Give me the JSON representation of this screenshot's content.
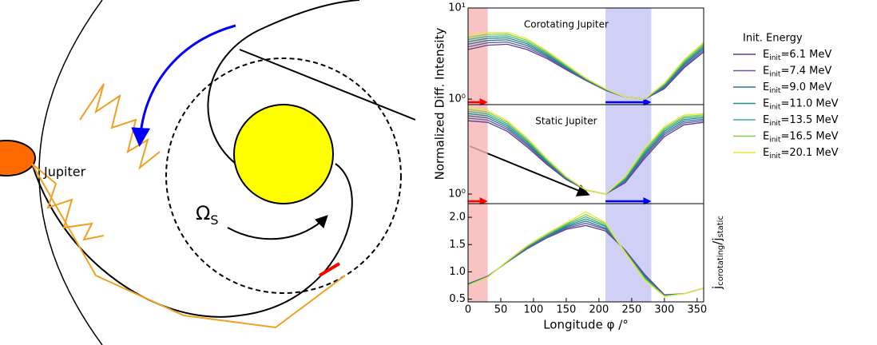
{
  "diagram": {
    "jupiter_label": "Jupiter",
    "omega": "Ω",
    "omega_sub": "S"
  },
  "chart_data": {
    "type": "line",
    "x": [
      0,
      30,
      60,
      90,
      120,
      150,
      180,
      210,
      240,
      270,
      300,
      330,
      360
    ],
    "xlim": [
      0,
      360
    ],
    "xticks": [
      0,
      50,
      100,
      150,
      200,
      250,
      300,
      350
    ],
    "xlabel": "Longitude φ /°",
    "ylabel": "Normalized Diff. Intensity",
    "ratio_label": [
      "j",
      "corotating",
      "/j",
      "static"
    ],
    "legend_title": "Init. Energy",
    "bands": [
      {
        "from": 0,
        "to": 30,
        "color": "#f7b4b4",
        "arrow": "#ff0000"
      },
      {
        "from": 210,
        "to": 280,
        "color": "#c4c4f5",
        "arrow": "#0000ff"
      }
    ],
    "series": [
      {
        "name": [
          "E",
          "init",
          "=6.1 MeV"
        ],
        "color": "#5e3c99"
      },
      {
        "name": [
          "E",
          "init",
          "=7.4 MeV"
        ],
        "color": "#5a5fa0"
      },
      {
        "name": [
          "E",
          "init",
          "=9.0 MeV"
        ],
        "color": "#3b6e94"
      },
      {
        "name": [
          "E",
          "init",
          "=11.0 MeV"
        ],
        "color": "#21908d"
      },
      {
        "name": [
          "E",
          "init",
          "=13.5 MeV"
        ],
        "color": "#3cb48a"
      },
      {
        "name": [
          "E",
          "init",
          "=16.5 MeV"
        ],
        "color": "#8ccb4a"
      },
      {
        "name": [
          "E",
          "init",
          "=20.1 MeV"
        ],
        "color": "#e8e840"
      }
    ],
    "panels": [
      {
        "title": "Corotating Jupiter",
        "log": true,
        "ylim": [
          0.87,
          10
        ],
        "yticks": [
          {
            "value": 1,
            "label": "10⁰"
          },
          {
            "value": 10,
            "label": "10¹"
          }
        ],
        "values": [
          [
            3.5,
            3.9,
            4.0,
            3.5,
            2.8,
            2.1,
            1.6,
            1.25,
            1.05,
            1.0,
            1.3,
            2.2,
            3.3
          ],
          [
            3.75,
            4.15,
            4.23,
            3.68,
            2.9,
            2.15,
            1.62,
            1.26,
            1.05,
            1.0,
            1.33,
            2.28,
            3.45
          ],
          [
            4.0,
            4.4,
            4.47,
            3.87,
            3.0,
            2.2,
            1.63,
            1.27,
            1.05,
            1.0,
            1.37,
            2.37,
            3.6
          ],
          [
            4.25,
            4.65,
            4.7,
            4.05,
            3.1,
            2.25,
            1.65,
            1.28,
            1.05,
            1.0,
            1.4,
            2.45,
            3.75
          ],
          [
            4.5,
            4.9,
            4.93,
            4.23,
            3.2,
            2.3,
            1.67,
            1.28,
            1.05,
            1.0,
            1.43,
            2.53,
            3.9
          ],
          [
            4.75,
            5.15,
            5.17,
            4.42,
            3.3,
            2.35,
            1.68,
            1.29,
            1.05,
            1.0,
            1.47,
            2.62,
            4.05
          ],
          [
            5.0,
            5.4,
            5.4,
            4.6,
            3.4,
            2.4,
            1.7,
            1.3,
            1.05,
            1.0,
            1.5,
            2.7,
            4.2
          ]
        ]
      },
      {
        "title": "Static Jupiter",
        "log": true,
        "ylim": [
          0.8,
          8
        ],
        "yticks": [
          {
            "value": 1,
            "label": "10⁰"
          }
        ],
        "values": [
          [
            5.5,
            5.3,
            4.3,
            3.0,
            2.0,
            1.4,
            1.1,
            1.0,
            1.3,
            2.3,
            3.8,
            5.0,
            5.3
          ],
          [
            5.83,
            5.58,
            4.5,
            3.12,
            2.05,
            1.42,
            1.1,
            1.0,
            1.33,
            2.4,
            3.97,
            5.22,
            5.5
          ],
          [
            6.17,
            5.87,
            4.7,
            3.23,
            2.1,
            1.43,
            1.1,
            1.0,
            1.37,
            2.5,
            4.13,
            5.43,
            5.7
          ],
          [
            6.5,
            6.15,
            4.9,
            3.35,
            2.15,
            1.45,
            1.1,
            1.0,
            1.4,
            2.6,
            4.3,
            5.65,
            5.9
          ],
          [
            6.83,
            6.43,
            5.1,
            3.47,
            2.2,
            1.47,
            1.1,
            1.0,
            1.43,
            2.7,
            4.47,
            5.87,
            6.1
          ],
          [
            7.17,
            6.72,
            5.3,
            3.58,
            2.25,
            1.48,
            1.1,
            1.0,
            1.47,
            2.8,
            4.63,
            6.08,
            6.3
          ],
          [
            7.5,
            7.0,
            5.5,
            3.7,
            2.3,
            1.5,
            1.1,
            1.0,
            1.5,
            2.9,
            4.8,
            6.3,
            6.5
          ]
        ]
      },
      {
        "log": false,
        "ylim": [
          0.45,
          2.25
        ],
        "yticks": [
          0.5,
          {
            "value": 1,
            "label": "1.0"
          },
          1.5,
          {
            "value": 2,
            "label": "2.0"
          }
        ],
        "values": [
          [
            0.78,
            0.92,
            1.18,
            1.42,
            1.62,
            1.78,
            1.85,
            1.75,
            1.4,
            0.95,
            0.58,
            0.6,
            0.7
          ],
          [
            0.77,
            0.92,
            1.18,
            1.43,
            1.63,
            1.8,
            1.89,
            1.78,
            1.39,
            0.93,
            0.57,
            0.6,
            0.7
          ],
          [
            0.77,
            0.91,
            1.19,
            1.44,
            1.65,
            1.82,
            1.93,
            1.8,
            1.38,
            0.92,
            0.57,
            0.6,
            0.7
          ],
          [
            0.76,
            0.91,
            1.19,
            1.45,
            1.66,
            1.84,
            1.97,
            1.83,
            1.37,
            0.9,
            0.56,
            0.6,
            0.7
          ],
          [
            0.76,
            0.91,
            1.19,
            1.46,
            1.67,
            1.86,
            2.01,
            1.85,
            1.37,
            0.88,
            0.56,
            0.6,
            0.7
          ],
          [
            0.75,
            0.9,
            1.2,
            1.47,
            1.69,
            1.88,
            2.05,
            1.88,
            1.36,
            0.87,
            0.55,
            0.6,
            0.7
          ],
          [
            0.75,
            0.9,
            1.2,
            1.48,
            1.7,
            1.9,
            2.1,
            1.9,
            1.35,
            0.85,
            0.55,
            0.6,
            0.7
          ]
        ]
      }
    ]
  }
}
